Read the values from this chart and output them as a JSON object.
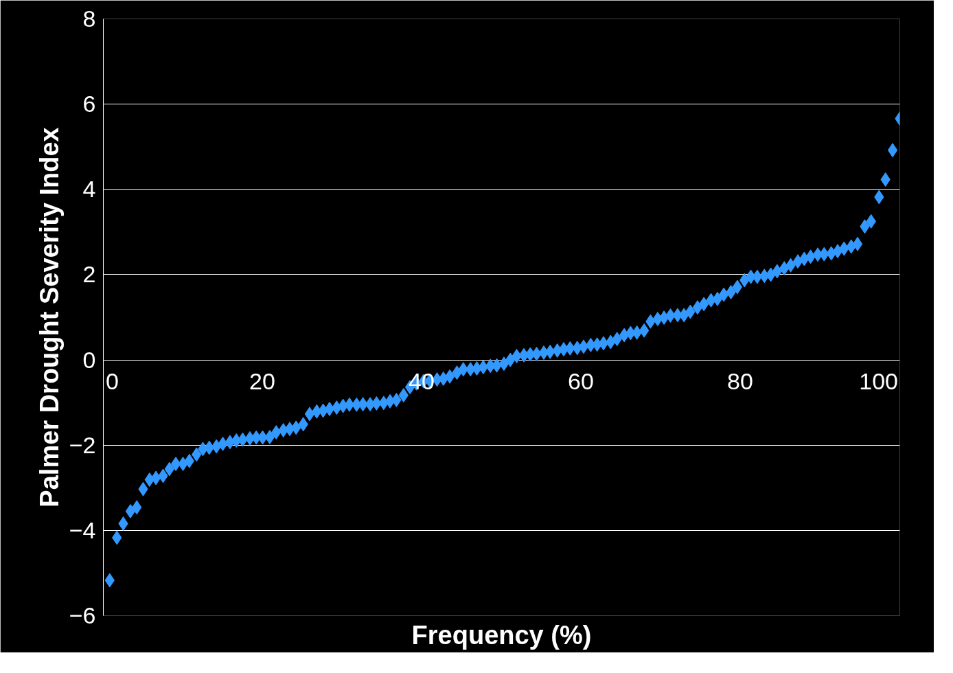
{
  "chart_data": {
    "type": "scatter",
    "xlabel": "Frequency (%)",
    "ylabel": "Palmer Drought Severity Index",
    "xlim": [
      0,
      100
    ],
    "xticks": [
      0,
      20,
      40,
      60,
      80,
      100
    ],
    "ylim": [
      -6,
      8
    ],
    "yticks": [
      -6,
      -4,
      -2,
      0,
      2,
      4,
      6,
      8
    ],
    "grid": "y",
    "marker": "diamond",
    "series": [
      {
        "color": "#3399ff",
        "x": [
          0.8,
          1.7,
          2.5,
          3.4,
          4.2,
          5.0,
          5.8,
          6.6,
          7.5,
          8.3,
          9.1,
          10.0,
          10.8,
          11.7,
          12.5,
          13.3,
          14.2,
          15.0,
          15.9,
          16.7,
          17.5,
          18.4,
          19.2,
          20.0,
          20.9,
          21.7,
          22.6,
          23.4,
          24.2,
          25.1,
          25.9,
          26.8,
          27.6,
          28.4,
          29.3,
          30.1,
          30.9,
          31.8,
          32.6,
          33.5,
          34.3,
          35.2,
          36.0,
          36.8,
          37.7,
          38.5,
          39.3,
          40.2,
          41.0,
          41.9,
          42.7,
          43.5,
          44.4,
          45.2,
          46.1,
          46.9,
          47.7,
          48.6,
          49.4,
          50.3,
          51.1,
          51.9,
          52.8,
          53.6,
          54.4,
          55.3,
          56.1,
          57.0,
          57.8,
          58.6,
          59.5,
          60.3,
          61.2,
          62.0,
          62.8,
          63.7,
          64.5,
          65.4,
          66.2,
          67.0,
          67.9,
          68.7,
          69.6,
          70.4,
          71.2,
          72.1,
          72.9,
          73.7,
          74.6,
          75.4,
          76.3,
          77.1,
          77.9,
          78.8,
          79.6,
          80.5,
          81.3,
          82.1,
          83.0,
          83.8,
          84.6,
          85.5,
          86.3,
          87.2,
          88.0,
          88.8,
          89.7,
          90.5,
          91.4,
          92.2,
          93.0,
          93.9,
          94.7,
          95.6,
          96.4,
          97.4,
          98.2,
          99.1,
          100.0
        ],
        "values": [
          -5.17,
          -4.17,
          -3.84,
          -3.55,
          -3.46,
          -3.03,
          -2.81,
          -2.77,
          -2.72,
          -2.56,
          -2.44,
          -2.44,
          -2.37,
          -2.22,
          -2.09,
          -2.06,
          -2.03,
          -1.97,
          -1.93,
          -1.89,
          -1.87,
          -1.84,
          -1.82,
          -1.82,
          -1.81,
          -1.7,
          -1.65,
          -1.62,
          -1.59,
          -1.51,
          -1.27,
          -1.21,
          -1.19,
          -1.15,
          -1.12,
          -1.08,
          -1.05,
          -1.05,
          -1.04,
          -1.04,
          -1.02,
          -1.01,
          -0.97,
          -0.94,
          -0.83,
          -0.64,
          -0.55,
          -0.5,
          -0.49,
          -0.46,
          -0.44,
          -0.39,
          -0.3,
          -0.22,
          -0.22,
          -0.2,
          -0.17,
          -0.14,
          -0.13,
          -0.09,
          0.0,
          0.09,
          0.11,
          0.13,
          0.14,
          0.17,
          0.19,
          0.22,
          0.25,
          0.27,
          0.28,
          0.31,
          0.35,
          0.36,
          0.39,
          0.42,
          0.49,
          0.58,
          0.63,
          0.64,
          0.69,
          0.9,
          0.96,
          0.99,
          1.04,
          1.05,
          1.05,
          1.13,
          1.23,
          1.31,
          1.4,
          1.43,
          1.53,
          1.59,
          1.71,
          1.87,
          1.95,
          1.95,
          1.97,
          2.0,
          2.08,
          2.15,
          2.22,
          2.31,
          2.37,
          2.42,
          2.47,
          2.48,
          2.5,
          2.55,
          2.61,
          2.66,
          2.72,
          3.13,
          3.25,
          3.82,
          4.23,
          4.92,
          5.66
        ]
      }
    ]
  }
}
